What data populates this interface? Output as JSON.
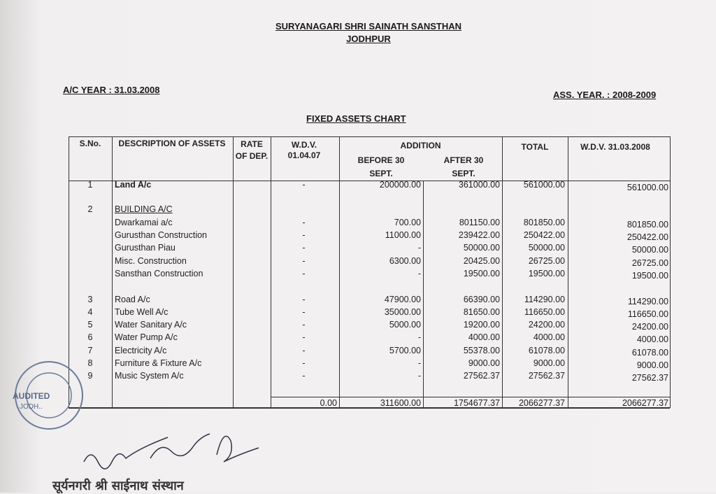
{
  "header": {
    "org_name": "SURYANAGARI SHRI SAINATH SANSTHAN",
    "city": "JODHPUR",
    "ac_year": "A/C YEAR : 31.03.2008",
    "ass_year": "ASS. YEAR. : 2008-2009",
    "chart_title": "FIXED ASSETS CHART"
  },
  "table": {
    "columns": {
      "sno": "S.No.",
      "desc": "DESCRIPTION OF ASSETS",
      "rate": "RATE OF DEP.",
      "wdv_open": "W.D.V. 01.04.07",
      "addition": "ADDITION",
      "before": "BEFORE 30 SEPT.",
      "after": "AFTER 30 SEPT.",
      "total": "TOTAL",
      "wdv_close": "W.D.V. 31.03.2008"
    },
    "rows": [
      {
        "sno": "1",
        "desc": "Land A/c",
        "bold": true,
        "wdv": "-",
        "before": "200000.00",
        "after": "361000.00",
        "total": "561000.00",
        "wdv2": "561000.00"
      },
      {
        "sno": "2",
        "desc": "BUILDING A/C",
        "heading": true
      },
      {
        "desc": "Dwarkamai a/c",
        "wdv": "-",
        "before": "700.00",
        "after": "801150.00",
        "total": "801850.00",
        "wdv2": "801850.00"
      },
      {
        "desc": "Gurusthan Construction",
        "wdv": "-",
        "before": "11000.00",
        "after": "239422.00",
        "total": "250422.00",
        "wdv2": "250422.00"
      },
      {
        "desc": "Gurusthan Piau",
        "wdv": "-",
        "before": "-",
        "after": "50000.00",
        "total": "50000.00",
        "wdv2": "50000.00"
      },
      {
        "desc": "Misc. Construction",
        "wdv": "-",
        "before": "6300.00",
        "after": "20425.00",
        "total": "26725.00",
        "wdv2": "26725.00"
      },
      {
        "desc": "Sansthan Construction",
        "wdv": "-",
        "before": "-",
        "after": "19500.00",
        "total": "19500.00",
        "wdv2": "19500.00"
      },
      {
        "sno": "3",
        "desc": "Road A/c",
        "wdv": "-",
        "before": "47900.00",
        "after": "66390.00",
        "total": "114290.00",
        "wdv2": "114290.00"
      },
      {
        "sno": "4",
        "desc": "Tube Well  A/c",
        "wdv": "-",
        "before": "35000.00",
        "after": "81650.00",
        "total": "116650.00",
        "wdv2": "116650.00"
      },
      {
        "sno": "5",
        "desc": "Water Sanitary A/c",
        "wdv": "-",
        "before": "5000.00",
        "after": "19200.00",
        "total": "24200.00",
        "wdv2": "24200.00"
      },
      {
        "sno": "6",
        "desc": "Water Pump A/c",
        "wdv": "-",
        "before": "-",
        "after": "4000.00",
        "total": "4000.00",
        "wdv2": "4000.00"
      },
      {
        "sno": "7",
        "desc": "Electricity A/c",
        "wdv": "-",
        "before": "5700.00",
        "after": "55378.00",
        "total": "61078.00",
        "wdv2": "61078.00"
      },
      {
        "sno": "8",
        "desc": "Furniture & Fixture A/c",
        "wdv": "-",
        "before": "-",
        "after": "9000.00",
        "total": "9000.00",
        "wdv2": "9000.00"
      },
      {
        "sno": "9",
        "desc": "Music System A/c",
        "wdv": "-",
        "before": "-",
        "after": "27562.37",
        "total": "27562.37",
        "wdv2": "27562.37"
      }
    ],
    "totals": {
      "wdv": "0.00",
      "before": "311600.00",
      "after": "1754677.37",
      "total": "2066277.37",
      "wdv2": "2066277.37"
    }
  },
  "stamp": {
    "text": "AUDITED JODHPUR",
    "ring_text": "SHRI & ASSOCIATES CHARTERED"
  },
  "footer": {
    "hindi_name": "सूर्यनगरी श्री साईनाथ संस्थान"
  },
  "colors": {
    "ink": "#222222",
    "paper": "#f1efef",
    "stamp": "#6a7a9a"
  }
}
